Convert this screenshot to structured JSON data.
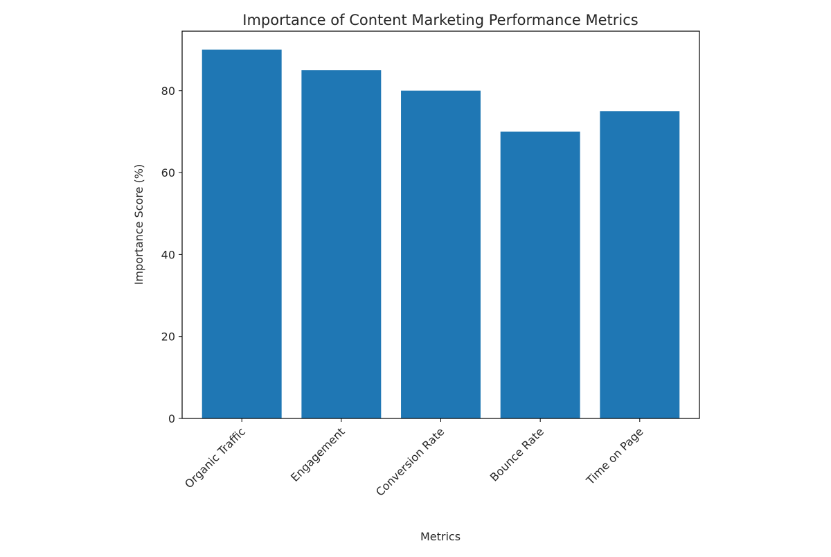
{
  "chart_data": {
    "type": "bar",
    "title": "Importance of Content Marketing Performance Metrics",
    "xlabel": "Metrics",
    "ylabel": "Importance Score (%)",
    "categories": [
      "Organic Traffic",
      "Engagement",
      "Conversion Rate",
      "Bounce Rate",
      "Time on Page"
    ],
    "values": [
      90,
      85,
      80,
      70,
      75
    ],
    "ylim": [
      0,
      94.5
    ],
    "yticks": [
      0,
      20,
      40,
      60,
      80
    ],
    "bar_color": "#1f77b4",
    "grid": false,
    "legend": "none"
  }
}
